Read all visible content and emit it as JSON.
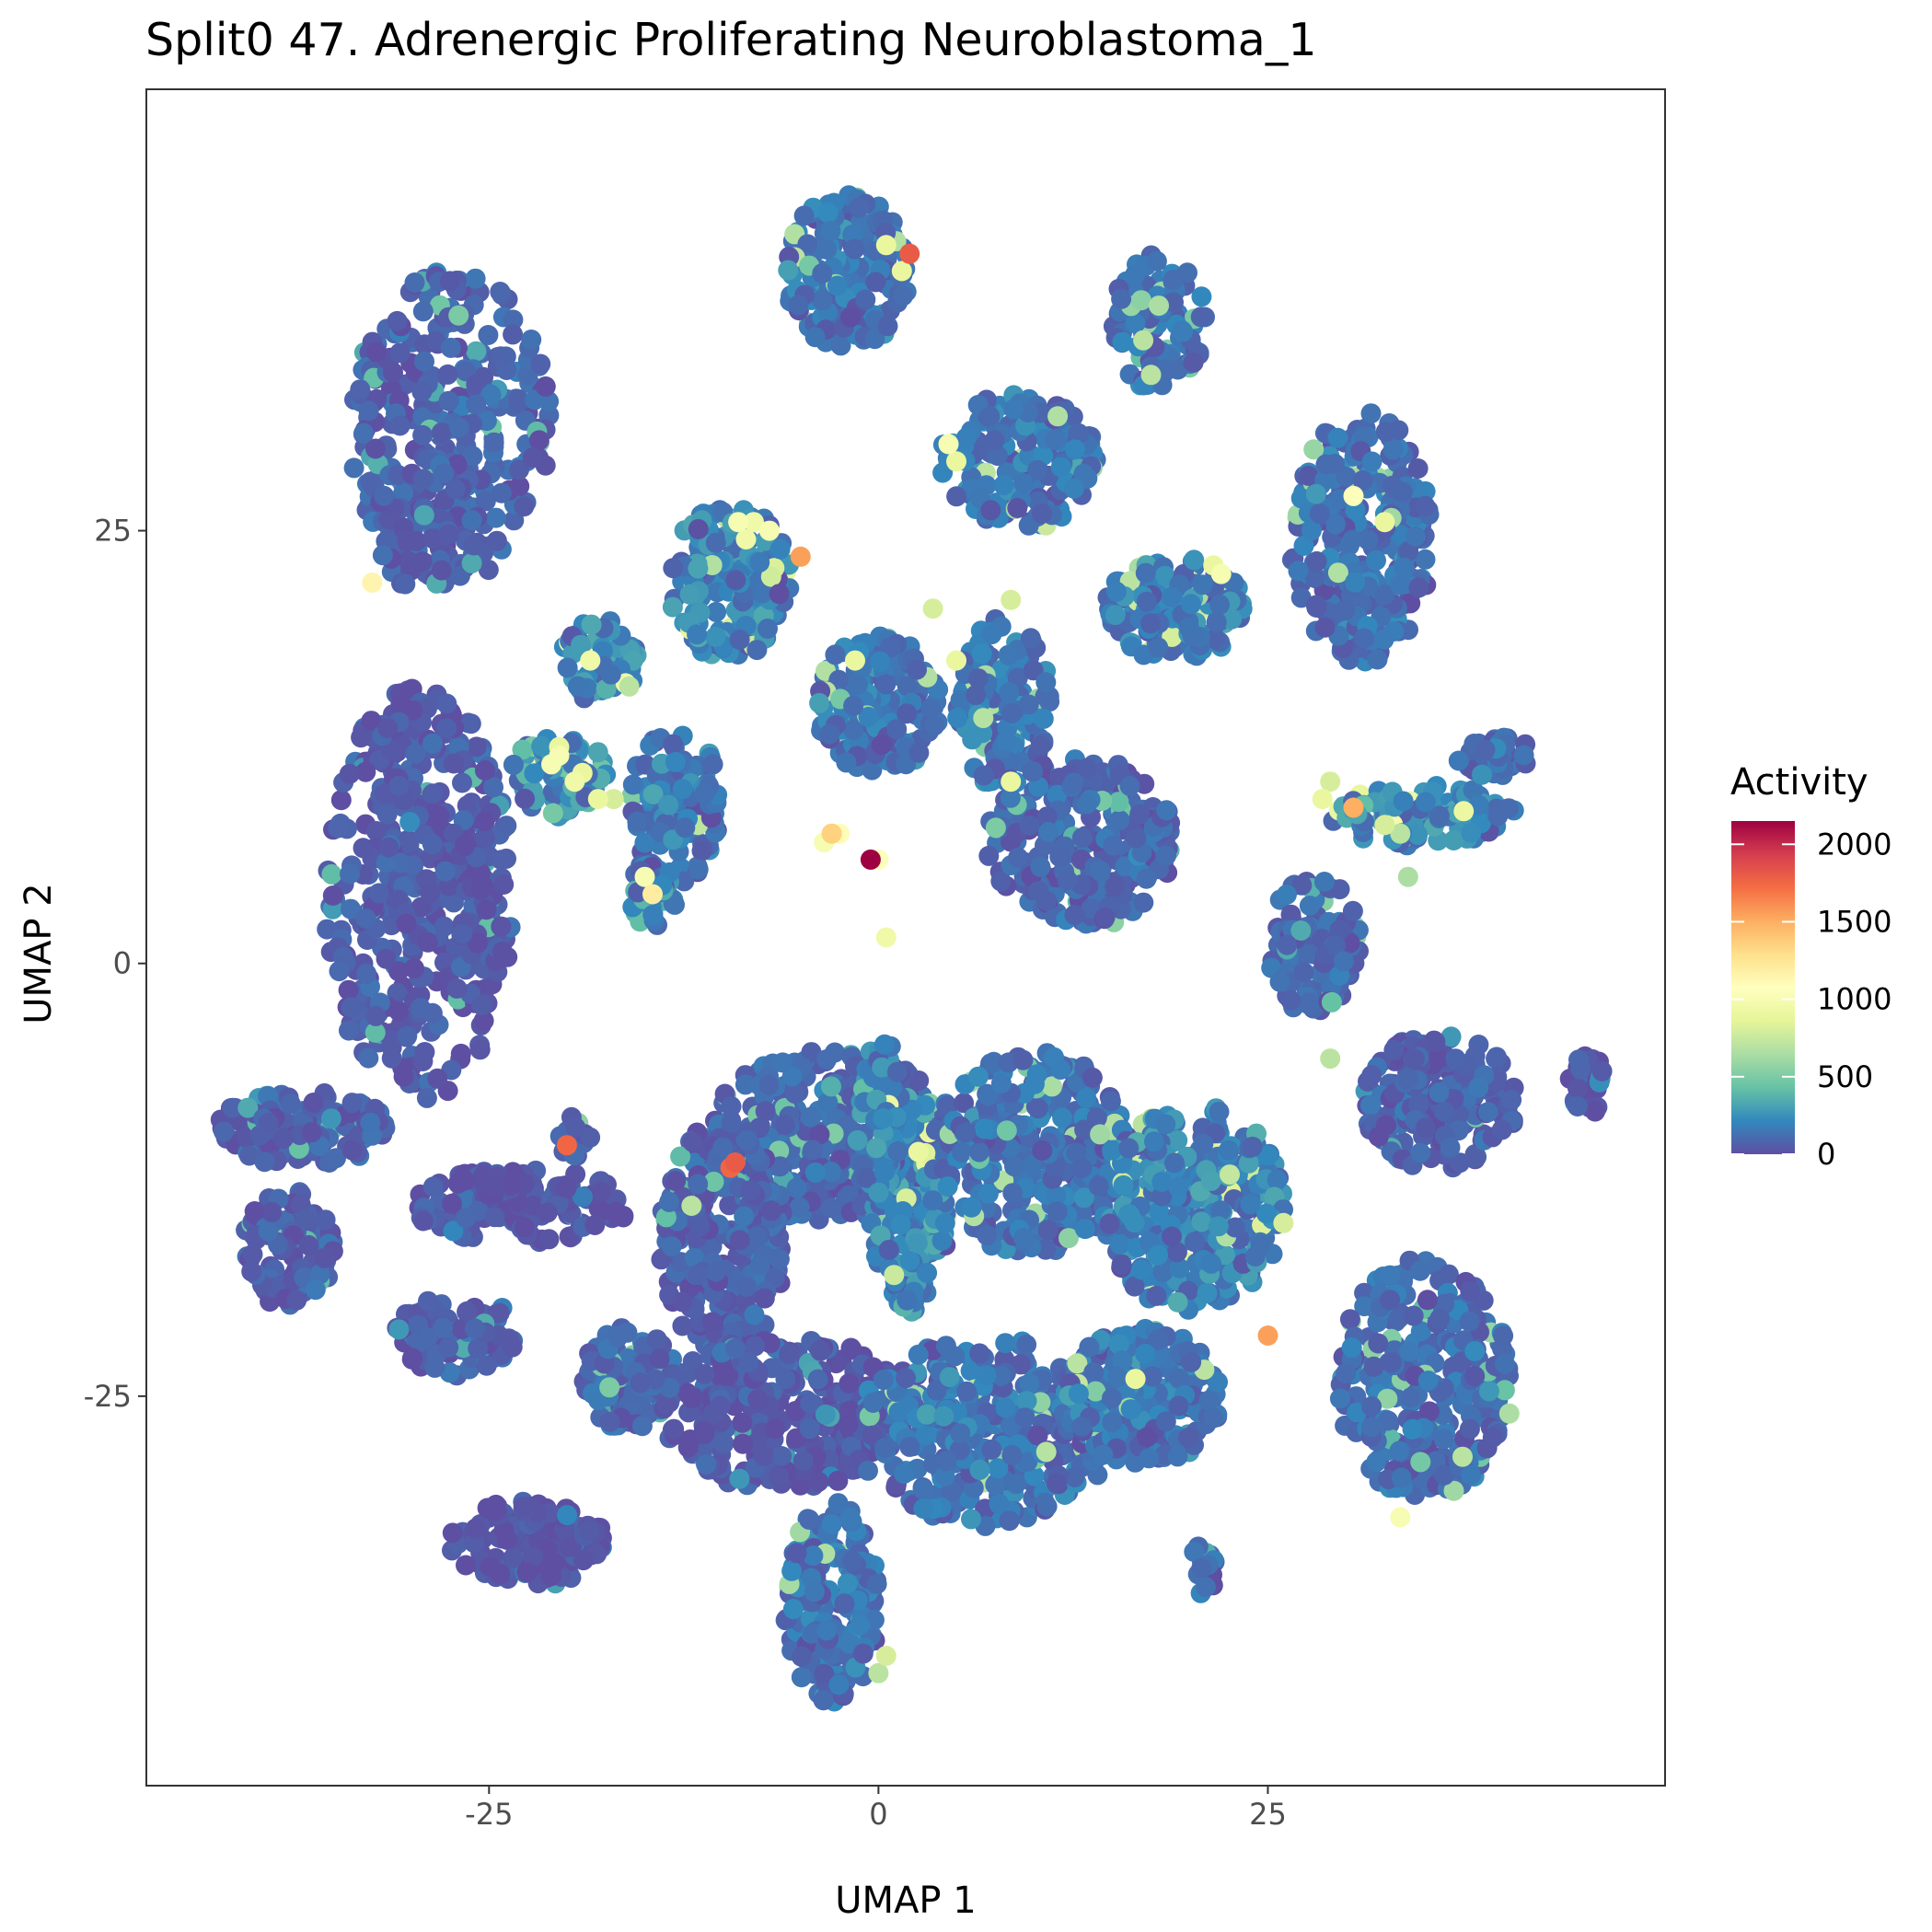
{
  "chart_data": {
    "type": "scatter",
    "title": "Split0 47. Adrenergic Proliferating Neuroblastoma_1",
    "xlabel": "UMAP 1",
    "ylabel": "UMAP 2",
    "xlim": [
      -47,
      50.5
    ],
    "ylim": [
      -47.5,
      50.5
    ],
    "x_ticks": [
      -25,
      0,
      25
    ],
    "x_tick_labels": [
      "-25",
      "0",
      "25"
    ],
    "y_ticks": [
      -25,
      0,
      25
    ],
    "y_tick_labels": [
      "-25",
      "0",
      "25"
    ],
    "grid": false,
    "legend": {
      "title": "Activity",
      "placement": "right",
      "range": [
        0,
        2150
      ],
      "ticks": [
        0,
        500,
        1000,
        1500,
        2000
      ],
      "tick_labels": [
        "0",
        "500",
        "1000",
        "1500",
        "2000"
      ],
      "colors": [
        "#5e4fa2",
        "#3288bd",
        "#66c2a5",
        "#abdda4",
        "#e6f598",
        "#ffffbf",
        "#fee08b",
        "#fdae61",
        "#f46d43",
        "#d53e4f",
        "#9e0142"
      ]
    },
    "clusters": [
      {
        "x": -27.5,
        "y": 31,
        "rx": 6.5,
        "ry": 9,
        "n": 300,
        "v": 90
      },
      {
        "x": -29,
        "y": 25,
        "rx": 3.5,
        "ry": 3.5,
        "n": 60,
        "v": 60
      },
      {
        "x": -29.5,
        "y": 4,
        "rx": 6,
        "ry": 12,
        "n": 450,
        "v": 60
      },
      {
        "x": -2,
        "y": 40,
        "rx": 4,
        "ry": 4.5,
        "n": 180,
        "v": 160
      },
      {
        "x": 18,
        "y": 37,
        "rx": 3,
        "ry": 4,
        "n": 100,
        "v": 140
      },
      {
        "x": 9,
        "y": 29,
        "rx": 5,
        "ry": 4,
        "n": 160,
        "v": 180
      },
      {
        "x": 31,
        "y": 24.5,
        "rx": 4.5,
        "ry": 7.5,
        "n": 260,
        "v": 150
      },
      {
        "x": -9.5,
        "y": 22,
        "rx": 4,
        "ry": 4.5,
        "n": 160,
        "v": 220
      },
      {
        "x": 19,
        "y": 20.5,
        "rx": 4.5,
        "ry": 3,
        "n": 140,
        "v": 200
      },
      {
        "x": -18,
        "y": 17.5,
        "rx": 2.5,
        "ry": 2.5,
        "n": 60,
        "v": 260
      },
      {
        "x": -20.5,
        "y": 11,
        "rx": 3,
        "ry": 2.5,
        "n": 80,
        "v": 320
      },
      {
        "x": -13,
        "y": 9,
        "rx": 3,
        "ry": 4.5,
        "n": 120,
        "v": 170
      },
      {
        "x": -14.5,
        "y": 4,
        "rx": 1.5,
        "ry": 2,
        "n": 50,
        "v": 280
      },
      {
        "x": 0,
        "y": 15,
        "rx": 4,
        "ry": 4,
        "n": 170,
        "v": 160
      },
      {
        "x": 8,
        "y": 15,
        "rx": 3,
        "ry": 5,
        "n": 130,
        "v": 170
      },
      {
        "x": 13,
        "y": 7,
        "rx": 6,
        "ry": 5,
        "n": 250,
        "v": 110
      },
      {
        "x": 35,
        "y": 8.5,
        "rx": 6,
        "ry": 1.8,
        "n": 110,
        "v": 250
      },
      {
        "x": 39.5,
        "y": 12,
        "rx": 2.5,
        "ry": 1.2,
        "n": 40,
        "v": 150
      },
      {
        "x": 28,
        "y": 1,
        "rx": 3,
        "ry": 4,
        "n": 110,
        "v": 110
      },
      {
        "x": 45.5,
        "y": -7,
        "rx": 1.2,
        "ry": 1.8,
        "n": 30,
        "v": 40
      },
      {
        "x": -37,
        "y": -9.5,
        "rx": 5.5,
        "ry": 2.2,
        "n": 130,
        "v": 80
      },
      {
        "x": -38,
        "y": -16.5,
        "rx": 3,
        "ry": 3.5,
        "n": 110,
        "v": 80
      },
      {
        "x": -27,
        "y": -21.5,
        "rx": 4,
        "ry": 2.3,
        "n": 100,
        "v": 90
      },
      {
        "x": -23,
        "y": -14,
        "rx": 7,
        "ry": 2.2,
        "n": 150,
        "v": 40
      },
      {
        "x": -3,
        "y": -10,
        "rx": 8,
        "ry": 5,
        "n": 320,
        "v": 110
      },
      {
        "x": 2,
        "y": -14,
        "rx": 2.5,
        "ry": 6.5,
        "n": 180,
        "v": 250
      },
      {
        "x": 10,
        "y": -11,
        "rx": 6,
        "ry": 6,
        "n": 300,
        "v": 150
      },
      {
        "x": 20,
        "y": -14,
        "rx": 6,
        "ry": 6,
        "n": 330,
        "v": 220
      },
      {
        "x": 36,
        "y": -8,
        "rx": 5,
        "ry": 4,
        "n": 220,
        "v": 90
      },
      {
        "x": 35,
        "y": -24,
        "rx": 5.5,
        "ry": 7,
        "n": 280,
        "v": 130
      },
      {
        "x": -10,
        "y": -16,
        "rx": 4,
        "ry": 7,
        "n": 250,
        "v": 90
      },
      {
        "x": -6,
        "y": -26,
        "rx": 8,
        "ry": 4.5,
        "n": 300,
        "v": 40
      },
      {
        "x": 7,
        "y": -27,
        "rx": 8,
        "ry": 5.5,
        "n": 340,
        "v": 160
      },
      {
        "x": 17,
        "y": -25,
        "rx": 5,
        "ry": 4,
        "n": 220,
        "v": 170
      },
      {
        "x": -16,
        "y": -24,
        "rx": 3,
        "ry": 3,
        "n": 120,
        "v": 110
      },
      {
        "x": -22.5,
        "y": -33.5,
        "rx": 5,
        "ry": 2.5,
        "n": 140,
        "v": 30
      },
      {
        "x": -3,
        "y": -37,
        "rx": 3,
        "ry": 6,
        "n": 180,
        "v": 160
      },
      {
        "x": 0,
        "y": -9,
        "rx": 1.5,
        "ry": 5,
        "n": 80,
        "v": 250
      },
      {
        "x": 21,
        "y": -35,
        "rx": 1,
        "ry": 1.5,
        "n": 20,
        "v": 110
      },
      {
        "x": -19.5,
        "y": -10,
        "rx": 1.2,
        "ry": 1.2,
        "n": 15,
        "v": 120
      }
    ],
    "highlights": [
      {
        "x": 2,
        "y": 41,
        "v": 1800
      },
      {
        "x": -0.5,
        "y": 6,
        "v": 2150
      },
      {
        "x": -20,
        "y": -10.5,
        "v": 1750
      },
      {
        "x": -9.5,
        "y": -11.8,
        "v": 1750
      },
      {
        "x": -9.2,
        "y": -11.5,
        "v": 1800
      },
      {
        "x": -5,
        "y": 23.5,
        "v": 1550
      },
      {
        "x": 30.5,
        "y": 9,
        "v": 1500
      },
      {
        "x": 25,
        "y": -21.5,
        "v": 1550
      },
      {
        "x": -3,
        "y": 7.5,
        "v": 1350
      },
      {
        "x": -32.5,
        "y": 22,
        "v": 1150
      },
      {
        "x": -14.5,
        "y": 4,
        "v": 1200
      },
      {
        "x": -15,
        "y": 5,
        "v": 1000
      },
      {
        "x": -9,
        "y": 25.5,
        "v": 1000
      },
      {
        "x": -8,
        "y": 25.5,
        "v": 950
      },
      {
        "x": -7,
        "y": 25,
        "v": 1000
      },
      {
        "x": -8.5,
        "y": 24.5,
        "v": 950
      },
      {
        "x": -20.5,
        "y": 12,
        "v": 1000
      },
      {
        "x": -21,
        "y": 11.5,
        "v": 1000
      },
      {
        "x": -19.5,
        "y": 10.5,
        "v": 950
      },
      {
        "x": -19,
        "y": 11,
        "v": 900
      },
      {
        "x": -18,
        "y": 9.5,
        "v": 900
      },
      {
        "x": -17,
        "y": 9.5,
        "v": 800
      },
      {
        "x": -20.5,
        "y": 12.5,
        "v": 900
      },
      {
        "x": -18.5,
        "y": 17.5,
        "v": 950
      },
      {
        "x": -16,
        "y": 16,
        "v": 700
      },
      {
        "x": -2.5,
        "y": 7.5,
        "v": 1100
      },
      {
        "x": -3.5,
        "y": 7,
        "v": 1000
      },
      {
        "x": 0,
        "y": 6,
        "v": 1050
      },
      {
        "x": 4.5,
        "y": 30,
        "v": 1000
      },
      {
        "x": 5,
        "y": 29,
        "v": 900
      },
      {
        "x": 22,
        "y": 22.5,
        "v": 1000
      },
      {
        "x": 21.5,
        "y": 23,
        "v": 900
      },
      {
        "x": 30.5,
        "y": 27,
        "v": 1050
      },
      {
        "x": 28.5,
        "y": 9.5,
        "v": 900
      },
      {
        "x": 29,
        "y": 10.5,
        "v": 800
      },
      {
        "x": 32.5,
        "y": 8,
        "v": 800
      },
      {
        "x": 33.5,
        "y": 7.5,
        "v": 700
      },
      {
        "x": 33.5,
        "y": -32,
        "v": 1000
      },
      {
        "x": 16.5,
        "y": -24,
        "v": 900
      },
      {
        "x": 0.5,
        "y": 1.5,
        "v": 950
      },
      {
        "x": 8.5,
        "y": 21,
        "v": 800
      },
      {
        "x": 5,
        "y": 17.5,
        "v": 900
      },
      {
        "x": -1.5,
        "y": 17.5,
        "v": 900
      },
      {
        "x": 32.5,
        "y": 25.5,
        "v": 900
      },
      {
        "x": 26,
        "y": -15,
        "v": 800
      },
      {
        "x": 17.5,
        "y": 34,
        "v": 700
      },
      {
        "x": 17,
        "y": 36,
        "v": 700
      },
      {
        "x": 18,
        "y": 38,
        "v": 650
      },
      {
        "x": 8.5,
        "y": 10.5,
        "v": 900
      },
      {
        "x": -12,
        "y": -14,
        "v": 700
      },
      {
        "x": 1,
        "y": -18,
        "v": 750
      },
      {
        "x": 0.5,
        "y": -40,
        "v": 800
      },
      {
        "x": 0,
        "y": -41,
        "v": 700
      },
      {
        "x": 0.5,
        "y": 41.5,
        "v": 900
      },
      {
        "x": 1.5,
        "y": 40,
        "v": 900
      },
      {
        "x": 3.5,
        "y": 20.5,
        "v": 800
      },
      {
        "x": 29,
        "y": -5.5,
        "v": 700
      },
      {
        "x": 34,
        "y": 5,
        "v": 650
      },
      {
        "x": 37.5,
        "y": -28.5,
        "v": 700
      },
      {
        "x": 40.5,
        "y": -26,
        "v": 650
      }
    ]
  }
}
